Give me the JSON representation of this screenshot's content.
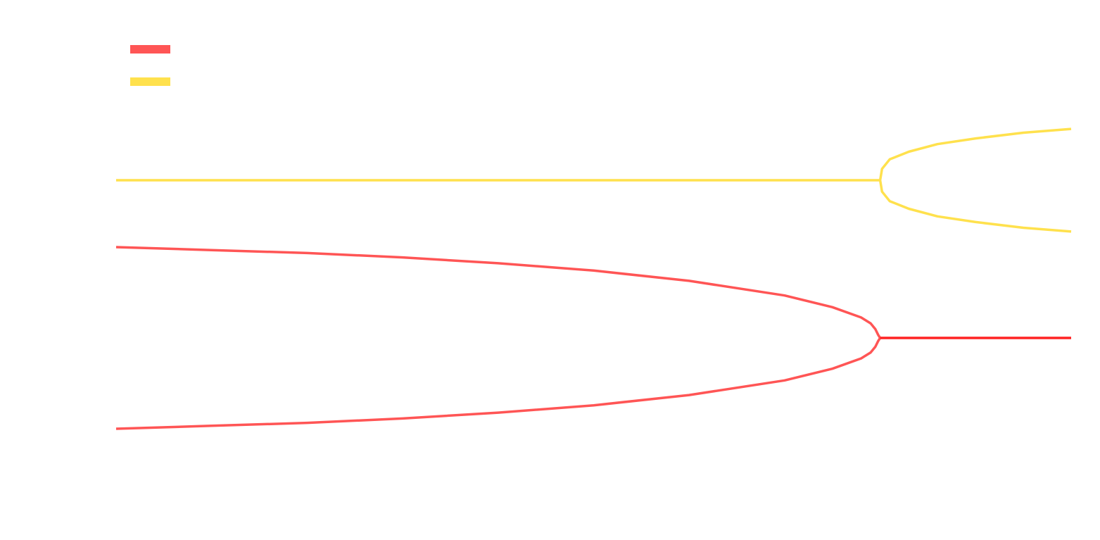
{
  "chart_data": {
    "type": "line",
    "title": "",
    "xlabel": "",
    "ylabel": "",
    "grid": false,
    "legend_position": "top-left",
    "xlim": [
      0,
      1
    ],
    "ylim": [
      -1,
      1
    ],
    "series": [
      {
        "name": "",
        "color": "#ff5555",
        "branches": [
          {
            "x": [
              0.0,
              0.1,
              0.2,
              0.3,
              0.4,
              0.5,
              0.6,
              0.7,
              0.75,
              0.78,
              0.79,
              0.795,
              0.798,
              0.8
            ],
            "y": [
              0.62,
              0.6,
              0.58,
              0.55,
              0.51,
              0.46,
              0.39,
              0.29,
              0.21,
              0.14,
              0.1,
              0.06,
              0.02,
              0.0
            ]
          },
          {
            "x": [
              0.0,
              0.1,
              0.2,
              0.3,
              0.4,
              0.5,
              0.6,
              0.7,
              0.75,
              0.78,
              0.79,
              0.795,
              0.798,
              0.8
            ],
            "y": [
              -0.62,
              -0.6,
              -0.58,
              -0.55,
              -0.51,
              -0.46,
              -0.39,
              -0.29,
              -0.21,
              -0.14,
              -0.1,
              -0.06,
              -0.02,
              0.0
            ]
          },
          {
            "x": [
              0.8,
              1.0
            ],
            "y": [
              0.0,
              0.0
            ]
          }
        ]
      },
      {
        "name": "",
        "color": "#ffe14d",
        "branches": [
          {
            "x": [
              0.0,
              0.8
            ],
            "y": [
              0.54,
              0.54
            ]
          },
          {
            "x": [
              0.8,
              0.802,
              0.81,
              0.83,
              0.86,
              0.9,
              0.95,
              1.0
            ],
            "y": [
              0.54,
              0.6,
              0.65,
              0.69,
              0.73,
              0.76,
              0.79,
              0.81
            ]
          },
          {
            "x": [
              0.8,
              0.802,
              0.81,
              0.83,
              0.86,
              0.9,
              0.95,
              1.0
            ],
            "y": [
              0.54,
              0.48,
              0.43,
              0.39,
              0.35,
              0.32,
              0.29,
              0.27
            ]
          }
        ]
      }
    ]
  }
}
